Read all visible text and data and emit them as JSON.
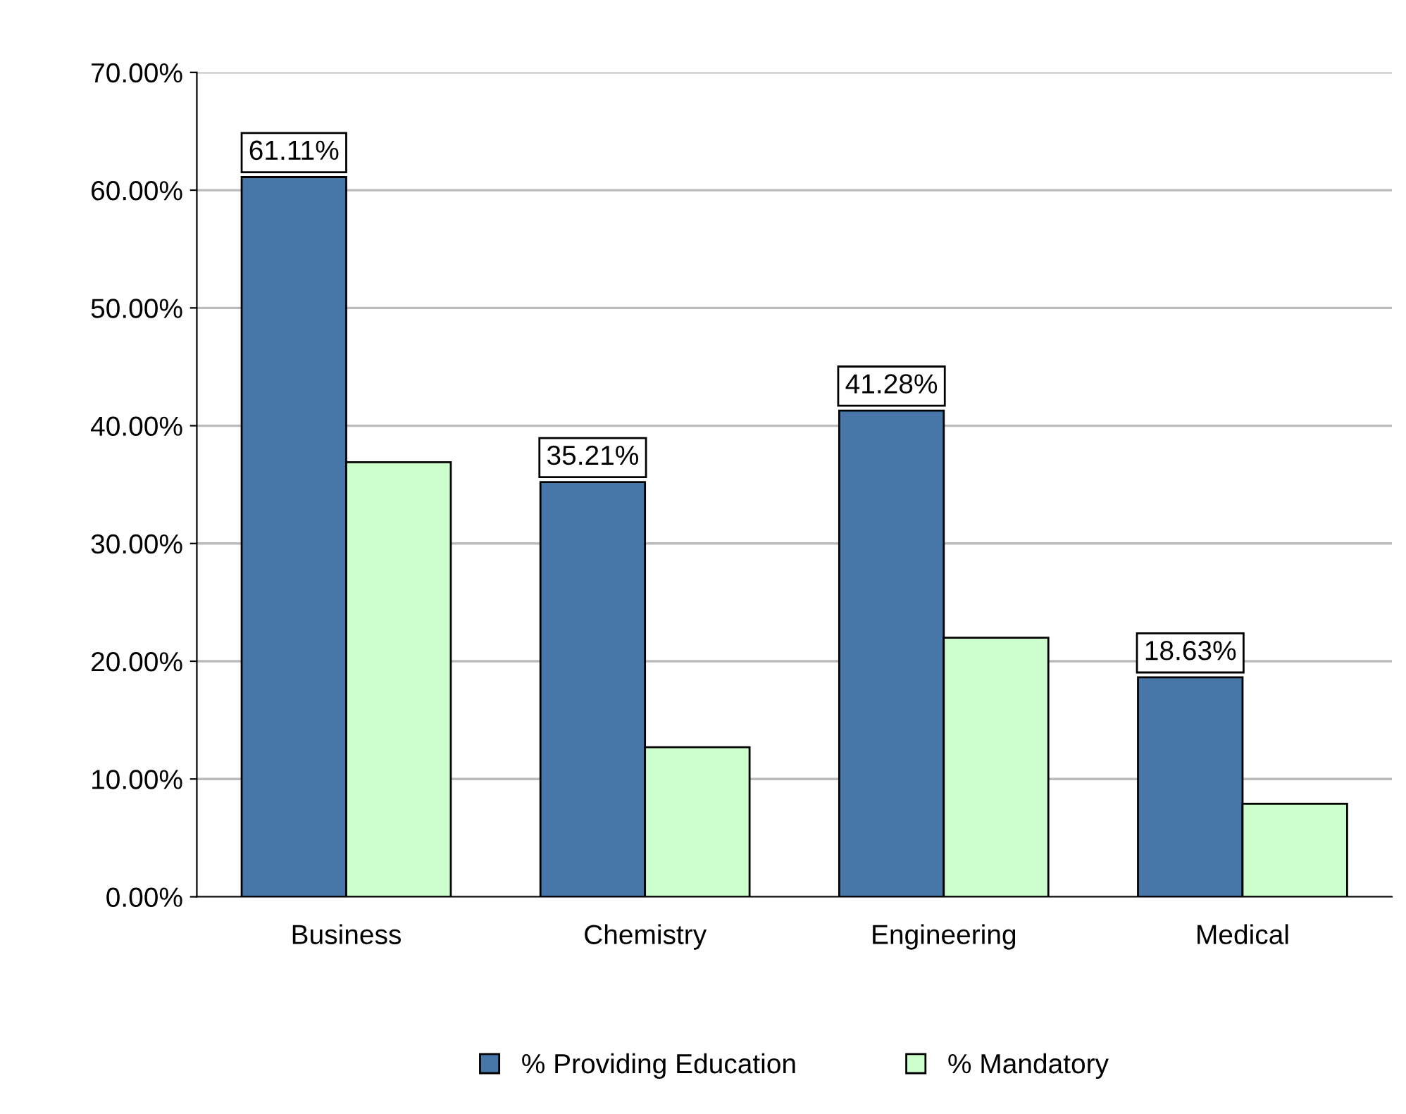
{
  "chart_data": {
    "type": "bar",
    "categories": [
      "Business",
      "Chemistry",
      "Engineering",
      "Medical"
    ],
    "series": [
      {
        "name": "% Providing Education",
        "color": "#4677a8",
        "values": [
          61.11,
          35.21,
          41.28,
          18.63
        ],
        "value_labels": [
          "61.11%",
          "35.21%",
          "41.28%",
          "18.63%"
        ]
      },
      {
        "name": "% Mandatory",
        "color": "#ccffcc",
        "values": [
          36.9,
          12.7,
          22.0,
          7.9
        ]
      }
    ],
    "ylim": [
      0,
      70
    ],
    "yticks": [
      {
        "value": 0,
        "label": "0.00%"
      },
      {
        "value": 10,
        "label": "10.00%"
      },
      {
        "value": 20,
        "label": "20.00%"
      },
      {
        "value": 30,
        "label": "30.00%"
      },
      {
        "value": 40,
        "label": "40.00%"
      },
      {
        "value": 50,
        "label": "50.00%"
      },
      {
        "value": 60,
        "label": "60.00%"
      },
      {
        "value": 70,
        "label": "70.00%"
      }
    ],
    "grid": "y",
    "legend": "bottom"
  }
}
